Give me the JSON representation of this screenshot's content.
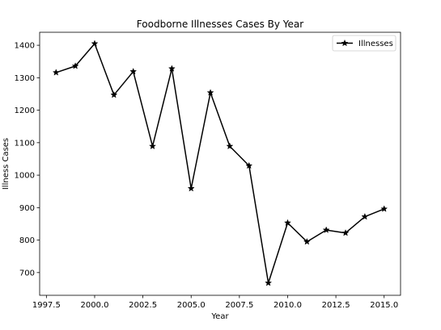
{
  "chart_data": {
    "type": "line",
    "title": "Foodborne Illnesses Cases By Year",
    "xlabel": "Year",
    "ylabel": "Illness Cases",
    "xlim": [
      1997.15,
      2015.85
    ],
    "ylim": [
      630,
      1440
    ],
    "x_ticks": [
      1997.5,
      2000.0,
      2002.5,
      2005.0,
      2007.5,
      2010.0,
      2012.5,
      2015.0
    ],
    "x_tick_labels": [
      "1997.5",
      "2000.0",
      "2002.5",
      "2005.0",
      "2007.5",
      "2010.0",
      "2012.5",
      "2015.0"
    ],
    "y_ticks": [
      700,
      800,
      900,
      1000,
      1100,
      1200,
      1300,
      1400
    ],
    "y_tick_labels": [
      "700",
      "800",
      "900",
      "1000",
      "1100",
      "1200",
      "1300",
      "1400"
    ],
    "grid": false,
    "legend_position": "top-right",
    "series": [
      {
        "name": "Illnesses",
        "color": "#000000",
        "marker": "star",
        "x": [
          1998,
          1999,
          2000,
          2001,
          2002,
          2003,
          2004,
          2005,
          2006,
          2007,
          2008,
          2009,
          2010,
          2011,
          2012,
          2013,
          2014,
          2015
        ],
        "y": [
          1316,
          1336,
          1405,
          1247,
          1319,
          1089,
          1328,
          959,
          1254,
          1089,
          1029,
          668,
          853,
          795,
          831,
          822,
          872,
          896
        ]
      }
    ]
  }
}
